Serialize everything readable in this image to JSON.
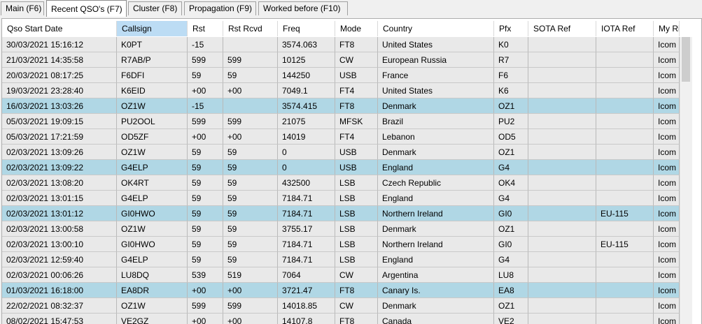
{
  "tabs": [
    {
      "label": "Main (F6)",
      "active": false
    },
    {
      "label": "Recent QSO's (F7)",
      "active": true
    },
    {
      "label": "Cluster (F8)",
      "active": false
    },
    {
      "label": "Propagation (F9)",
      "active": false
    },
    {
      "label": "Worked before (F10)",
      "active": false
    }
  ],
  "table": {
    "sorted_column": "Callsign",
    "colors": {
      "row_bg": "#e9e9e9",
      "highlight_bg": "#b0d7e5",
      "sorted_header_bg": "#bcdcf4"
    },
    "columns": [
      "Qso Start Date",
      "Callsign",
      "Rst",
      "Rst Rcvd",
      "Freq",
      "Mode",
      "Country",
      "Pfx",
      "SOTA Ref",
      "IOTA Ref",
      "My Ri"
    ],
    "rows": [
      {
        "highlight": false,
        "cells": [
          "30/03/2021 15:16:12",
          "K0PT",
          "-15",
          "",
          "3574.063",
          "FT8",
          "United States",
          "K0",
          "",
          "",
          "Icom I"
        ]
      },
      {
        "highlight": false,
        "cells": [
          "21/03/2021 14:35:58",
          "R7AB/P",
          "599",
          "599",
          "10125",
          "CW",
          "European Russia",
          "R7",
          "",
          "",
          "Icom I"
        ]
      },
      {
        "highlight": false,
        "cells": [
          "20/03/2021 08:17:25",
          "F6DFI",
          "59",
          "59",
          "144250",
          "USB",
          "France",
          "F6",
          "",
          "",
          "Icom I"
        ]
      },
      {
        "highlight": false,
        "cells": [
          "19/03/2021 23:28:40",
          "K6EID",
          "+00",
          "+00",
          "7049.1",
          "FT4",
          "United States",
          "K6",
          "",
          "",
          "Icom I"
        ]
      },
      {
        "highlight": true,
        "cells": [
          "16/03/2021 13:03:26",
          "OZ1W",
          "-15",
          "",
          "3574.415",
          "FT8",
          "Denmark",
          "OZ1",
          "",
          "",
          "Icom I"
        ]
      },
      {
        "highlight": false,
        "cells": [
          "05/03/2021 19:09:15",
          "PU2OOL",
          "599",
          "599",
          "21075",
          "MFSK",
          "Brazil",
          "PU2",
          "",
          "",
          "Icom I"
        ]
      },
      {
        "highlight": false,
        "cells": [
          "05/03/2021 17:21:59",
          "OD5ZF",
          "+00",
          "+00",
          "14019",
          "FT4",
          "Lebanon",
          "OD5",
          "",
          "",
          "Icom I"
        ]
      },
      {
        "highlight": false,
        "cells": [
          "02/03/2021 13:09:26",
          "OZ1W",
          "59",
          "59",
          "0",
          "USB",
          "Denmark",
          "OZ1",
          "",
          "",
          "Icom I"
        ]
      },
      {
        "highlight": true,
        "cells": [
          "02/03/2021 13:09:22",
          "G4ELP",
          "59",
          "59",
          "0",
          "USB",
          "England",
          "G4",
          "",
          "",
          "Icom I"
        ]
      },
      {
        "highlight": false,
        "cells": [
          "02/03/2021 13:08:20",
          "OK4RT",
          "59",
          "59",
          "432500",
          "LSB",
          "Czech Republic",
          "OK4",
          "",
          "",
          "Icom I"
        ]
      },
      {
        "highlight": false,
        "cells": [
          "02/03/2021 13:01:15",
          "G4ELP",
          "59",
          "59",
          "7184.71",
          "LSB",
          "England",
          "G4",
          "",
          "",
          "Icom I"
        ]
      },
      {
        "highlight": true,
        "cells": [
          "02/03/2021 13:01:12",
          "GI0HWO",
          "59",
          "59",
          "7184.71",
          "LSB",
          "Northern Ireland",
          "GI0",
          "",
          "EU-115",
          "Icom I"
        ]
      },
      {
        "highlight": false,
        "cells": [
          "02/03/2021 13:00:58",
          "OZ1W",
          "59",
          "59",
          "3755.17",
          "LSB",
          "Denmark",
          "OZ1",
          "",
          "",
          "Icom I"
        ]
      },
      {
        "highlight": false,
        "cells": [
          "02/03/2021 13:00:10",
          "GI0HWO",
          "59",
          "59",
          "7184.71",
          "LSB",
          "Northern Ireland",
          "GI0",
          "",
          "EU-115",
          "Icom I"
        ]
      },
      {
        "highlight": false,
        "cells": [
          "02/03/2021 12:59:40",
          "G4ELP",
          "59",
          "59",
          "7184.71",
          "LSB",
          "England",
          "G4",
          "",
          "",
          "Icom I"
        ]
      },
      {
        "highlight": false,
        "cells": [
          "02/03/2021 00:06:26",
          "LU8DQ",
          "539",
          "519",
          "7064",
          "CW",
          "Argentina",
          "LU8",
          "",
          "",
          "Icom I"
        ]
      },
      {
        "highlight": true,
        "cells": [
          "01/03/2021 16:18:00",
          "EA8DR",
          "+00",
          "+00",
          "3721.47",
          "FT8",
          "Canary Is.",
          "EA8",
          "",
          "",
          "Icom I"
        ]
      },
      {
        "highlight": false,
        "cells": [
          "22/02/2021 08:32:37",
          "OZ1W",
          "599",
          "599",
          "14018.85",
          "CW",
          "Denmark",
          "OZ1",
          "",
          "",
          "Icom I"
        ]
      },
      {
        "highlight": false,
        "cells": [
          "08/02/2021 15:47:53",
          "VE2GZ",
          "+00",
          "+00",
          "14107.8",
          "FT8",
          "Canada",
          "VE2",
          "",
          "",
          "Icom I"
        ]
      }
    ]
  }
}
